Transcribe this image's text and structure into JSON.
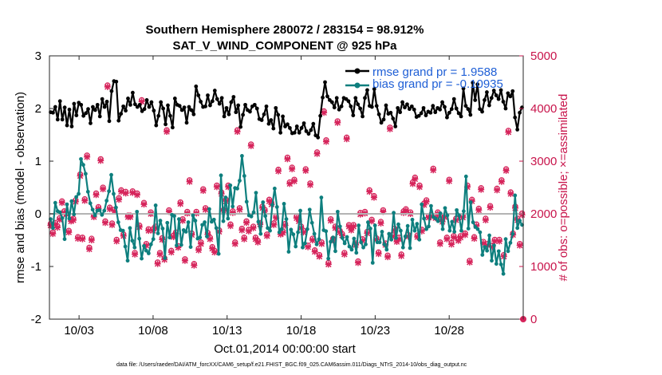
{
  "chart_data": {
    "type": "line",
    "title": "Southern Hemisphere 280072 / 283154 = 98.912%",
    "subtitle": "SAT_V_WIND_COMPONENT @ 925 hPa",
    "xlabel": "Oct.01,2014 00:00:00 start",
    "ylabel": "rmse and bias (model - observation)",
    "ylabel_right": "# of obs: o=possible; ×=assimilated",
    "footnote": "data file: /Users/raeder/DAI/ATM_forcXX/CAM6_setup/f.e21.FHIST_BGC.f09_025.CAM6assim.011/Diags_NTrS_2014-10/obs_diag_output.nc",
    "xlim": [
      1,
      33
    ],
    "ylim": [
      -2,
      3
    ],
    "ylim_right": [
      0,
      5000
    ],
    "x_ticks": [
      3,
      8,
      13,
      18,
      23,
      28
    ],
    "x_tick_labels": [
      "10/03",
      "10/08",
      "10/13",
      "10/18",
      "10/23",
      "10/28"
    ],
    "y_ticks": [
      -2,
      -1,
      0,
      1,
      2,
      3
    ],
    "y_tick_labels": [
      "-2",
      "-1",
      "0",
      "1",
      "2",
      "3"
    ],
    "y_ticks_right": [
      0,
      1000,
      2000,
      3000,
      4000,
      5000
    ],
    "y_tick_labels_right": [
      "0",
      "1000",
      "2000",
      "3000",
      "4000",
      "5000"
    ],
    "zero_line": 0,
    "legend_position": "top-right",
    "series": [
      {
        "name": "rmse grand pr = 1.9588",
        "color": "#000000",
        "values": [
          1.93,
          1.92,
          2.03,
          1.79,
          2.14,
          1.79,
          2.02,
          1.68,
          1.98,
          1.66,
          2.09,
          1.87,
          2.11,
          2.07,
          1.86,
          1.91,
          1.99,
          1.72,
          2.03,
          1.97,
          2.07,
          1.85,
          2.18,
          2.03,
          2.13,
          1.76,
          2.33,
          2.52,
          2.51,
          1.77,
          1.9,
          2.04,
          1.96,
          2.19,
          2.07,
          2.3,
          2.08,
          2.03,
          2.07,
          1.95,
          1.99,
          2.16,
          2.03,
          2.12,
          1.96,
          1.68,
          1.86,
          2.12,
          2.0,
          1.7,
          2.06,
          1.86,
          1.64,
          2.19,
          2.07,
          2.05,
          1.97,
          2.02,
          1.73,
          2.03,
          1.97,
          1.89,
          2.42,
          2.25,
          2.13,
          2.03,
          2.04,
          2.25,
          2.06,
          2.14,
          2.34,
          2.18,
          2.09,
          2.2,
          1.85,
          2.01,
          1.89,
          2.12,
          2.22,
          1.93,
          2.06,
          1.65,
          1.88,
          2.07,
          1.97,
          1.94,
          2.04,
          2.07,
          2.0,
          1.8,
          1.78,
          1.89,
          2.04,
          1.71,
          1.78,
          1.62,
          2.01,
          1.88,
          1.54,
          1.85,
          1.66,
          1.7,
          1.63,
          1.53,
          1.54,
          1.66,
          1.54,
          1.63,
          1.72,
          1.57,
          1.52,
          1.59,
          1.71,
          1.49,
          1.45,
          1.86,
          2.21,
          2.5,
          2.23,
          2.16,
          2.12,
          2.02,
          2.2,
          1.98,
          2.04,
          2.2,
          2.18,
          2.14,
          2.04,
          1.87,
          2.2,
          2.08,
          2.0,
          1.85,
          2.2,
          2.35,
          2.05,
          2.03,
          2.37,
          2.05,
          1.89,
          1.73,
          1.79,
          2.06,
          1.9,
          1.92,
          1.81,
          1.66,
          2.01,
          1.93,
          2.12,
          2.02,
          2.08,
          1.99,
          2.04,
          1.98,
          1.84,
          1.86,
          1.91,
          2.01,
          1.87,
          1.94,
          1.92,
          2.05,
          1.93,
          2.01,
          1.98,
          2.12,
          2.03,
          1.83,
          1.92,
          1.99,
          2.18,
          2.0,
          1.91,
          1.85,
          2.38,
          2.05,
          1.99,
          1.88,
          2.49,
          2.16,
          2.46,
          1.99,
          1.94,
          2.16,
          2.31,
          2.06,
          2.2,
          2.34,
          2.25,
          2.18,
          2.35,
          2.13,
          2.0,
          2.29,
          2.23,
          2.33,
          1.83,
          1.6,
          1.92,
          2.02
        ]
      },
      {
        "name": "bias grand pr = -0.10935",
        "color": "#0e7f7e",
        "values": [
          -0.1,
          -0.27,
          0.21,
          0.05,
          0.03,
          -0.08,
          -0.48,
          0.18,
          -0.09,
          0.24,
          -0.01,
          0.32,
          0.38,
          1.04,
          0.93,
          0.76,
          0.42,
          0.2,
          0.08,
          -0.03,
          0.06,
          0.07,
          -0.02,
          0.06,
          0.25,
          0.43,
          0.74,
          0.38,
          0.12,
          -0.16,
          -0.31,
          -0.32,
          -0.62,
          -0.89,
          -0.27,
          -0.51,
          -0.64,
          0.04,
          -0.47,
          -0.85,
          -0.61,
          -0.7,
          -0.75,
          -0.58,
          -0.48,
          0.16,
          -0.37,
          -0.13,
          -0.28,
          -0.84,
          -0.17,
          -0.45,
          -0.02,
          -0.04,
          -0.6,
          -0.1,
          -0.59,
          -0.31,
          -0.34,
          -0.16,
          -0.63,
          -0.03,
          -0.13,
          -0.47,
          -0.45,
          -0.21,
          -0.16,
          -0.43,
          0.09,
          -0.15,
          -0.11,
          -0.27,
          -0.76,
          0.73,
          -0.14,
          0.31,
          -0.09,
          0.54,
          0.14,
          0.49,
          0.48,
          0.63,
          1.1,
          0.72,
          0.23,
          -0.03,
          -0.05,
          0.03,
          0.4,
          -0.15,
          -0.38,
          0.22,
          -0.04,
          -0.27,
          -0.32,
          0.17,
          0.48,
          0.13,
          -0.35,
          -0.29,
          0.19,
          -0.1,
          -0.72,
          -0.3,
          -0.39,
          -0.62,
          -0.35,
          0.06,
          -0.64,
          -0.56,
          -0.29,
          0.08,
          -0.17,
          -0.38,
          -0.58,
          -0.48,
          0.31,
          -0.31,
          -0.33,
          -0.85,
          -0.53,
          -0.45,
          -0.71,
          0.04,
          -0.24,
          -0.46,
          -0.56,
          -0.44,
          -0.62,
          -0.68,
          -0.47,
          -0.74,
          -0.22,
          -0.54,
          -0.64,
          -0.58,
          -0.16,
          -0.28,
          -0.93,
          -0.22,
          -0.54,
          -0.54,
          -0.34,
          -0.58,
          -0.68,
          -0.38,
          -0.49,
          0.02,
          -0.46,
          -0.2,
          -0.32,
          -0.64,
          -0.43,
          -0.23,
          -0.65,
          -0.11,
          -0.32,
          -0.19,
          -0.49,
          0.18,
          -0.09,
          -0.29,
          -0.24,
          0.15,
          -0.06,
          -0.09,
          -0.14,
          0.01,
          -0.29,
          0.11,
          -0.03,
          -0.32,
          -0.15,
          -0.34,
          0.07,
          -0.03,
          -0.32,
          0.05,
          0.71,
          -0.28,
          0.22,
          -0.16,
          -0.25,
          -0.29,
          -0.35,
          -0.78,
          -0.63,
          -0.7,
          -0.41,
          -0.89,
          -0.6,
          -0.95,
          -0.71,
          -0.96,
          -1.14,
          -0.48,
          -0.71,
          -0.55,
          -0.38,
          0.35,
          -0.27,
          -0.13,
          -0.21
        ]
      }
    ],
    "obs_series": {
      "color": "#d6245b",
      "possible_values": [
        1810,
        1650,
        1830,
        1770,
        1920,
        2240,
        2050,
        2020,
        1680,
        1890,
        1910,
        2260,
        1560,
        2750,
        1550,
        2280,
        3110,
        1360,
        1530,
        1970,
        2390,
        2130,
        3040,
        2500,
        1860,
        4440,
        2120,
        1820,
        2080,
        1510,
        2300,
        2450,
        1610,
        2420,
        1970,
        1970,
        2430,
        1260,
        2390,
        1780,
        4160,
        2210,
        1430,
        1710,
        2030,
        1710,
        1760,
        1080,
        1260,
        1540,
        1160,
        3590,
        2070,
        1300,
        1590,
        1650,
        1390,
        2220,
        1900,
        1140,
        2040,
        2640,
        1630,
        1050,
        2040,
        1340,
        1460,
        2470,
        2110,
        1640,
        1550,
        1370,
        1300,
        2540,
        1690,
        2410,
        2080,
        2270,
        2540,
        1800,
        2050,
        1460,
        3590,
        2110,
        1720,
        1550,
        1860,
        1700,
        3320,
        1760,
        1550,
        1490,
        1830,
        2140,
        2080,
        1610,
        2270,
        2210,
        1820,
        1950,
        2840,
        1640,
        1670,
        1810,
        3070,
        2600,
        2880,
        2650,
        1950,
        1890,
        1760,
        1680,
        2850,
        1400,
        2580,
        1530,
        1310,
        3170,
        1220,
        1460,
        3950,
        3400,
        1070,
        1900,
        1530,
        1760,
        3760,
        1680,
        1620,
        1260,
        3450,
        1790,
        1720,
        1790,
        1440,
        1100,
        2020,
        1520,
        2040,
        1660,
        2450,
        1890,
        2340,
        1540,
        1270,
        1850,
        2070,
        1440,
        1210,
        3640,
        1600,
        1720,
        1500,
        1550,
        1230,
        2050,
        2090,
        1600,
        2030,
        2600,
        2690,
        1590,
        2540,
        1700,
        2200,
        2260,
        1960,
        1980,
        2860,
        1950,
        2030,
        1460,
        1880,
        1970,
        1550,
        2650,
        1450,
        1580,
        1910,
        1520,
        1580,
        1960,
        1630,
        2540,
        1110,
        2270,
        1560,
        1800,
        2100,
        2490,
        1470,
        1910,
        1430,
        2150,
        1400,
        1510,
        2480,
        1510,
        2640,
        1220,
        2850,
        3580,
        2410,
        1630,
        2140,
        1910,
        1430,
        2010
      ],
      "assimilated_values": [
        1780,
        1620,
        1800,
        1740,
        1890,
        2210,
        2020,
        1990,
        1650,
        1860,
        1880,
        2230,
        1530,
        2720,
        1520,
        2250,
        3080,
        1330,
        1500,
        1940,
        2360,
        2100,
        3010,
        2470,
        1830,
        4410,
        2090,
        1790,
        2050,
        1480,
        2270,
        2420,
        1580,
        2390,
        1940,
        1940,
        2400,
        1230,
        2360,
        1750,
        4130,
        2180,
        1400,
        1680,
        2000,
        1680,
        1730,
        1050,
        1230,
        1510,
        1130,
        3560,
        2040,
        1270,
        1560,
        1620,
        1360,
        2190,
        1870,
        1110,
        2010,
        2610,
        1600,
        1020,
        2010,
        1310,
        1430,
        2440,
        2080,
        1610,
        1520,
        1340,
        1270,
        2510,
        1660,
        2380,
        2050,
        2240,
        2510,
        1770,
        2020,
        1430,
        3560,
        2080,
        1690,
        1520,
        1830,
        1670,
        3290,
        1730,
        1520,
        1460,
        1800,
        2110,
        2050,
        1580,
        2240,
        2180,
        1790,
        1920,
        2810,
        1610,
        1640,
        1780,
        3040,
        2570,
        2850,
        2620,
        1920,
        1860,
        1730,
        1650,
        2820,
        1370,
        2550,
        1500,
        1280,
        3140,
        1190,
        1430,
        3920,
        3370,
        1040,
        1870,
        1500,
        1730,
        3730,
        1650,
        1590,
        1230,
        3420,
        1760,
        1690,
        1760,
        1410,
        1070,
        1990,
        1490,
        2010,
        1630,
        2420,
        1860,
        2310,
        1510,
        1240,
        1820,
        2040,
        1410,
        1180,
        3610,
        1570,
        1690,
        1470,
        1520,
        1200,
        2020,
        2060,
        1570,
        2000,
        2570,
        2660,
        1560,
        2510,
        1670,
        2170,
        2230,
        1930,
        1950,
        2830,
        1920,
        2000,
        1430,
        1850,
        1940,
        1520,
        2620,
        1420,
        1550,
        1880,
        1490,
        1550,
        1930,
        1600,
        2510,
        1080,
        2240,
        1530,
        1770,
        2070,
        2460,
        1440,
        1880,
        1400,
        2120,
        1370,
        1480,
        2450,
        1480,
        2610,
        1190,
        2820,
        3550,
        2380,
        1600,
        2110,
        1880,
        1400,
        1980
      ]
    }
  },
  "legend": {
    "rmse_label": "rmse grand pr = 1.9588",
    "bias_label": "bias grand pr = -0.10935"
  }
}
